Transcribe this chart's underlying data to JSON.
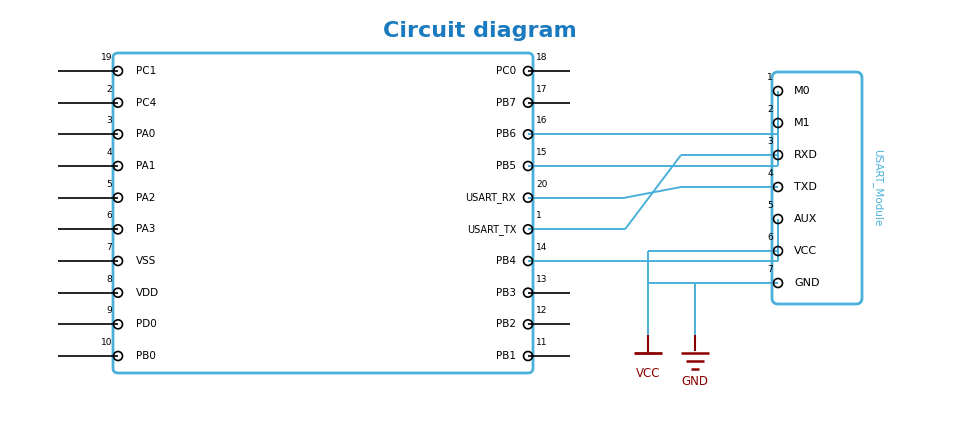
{
  "title": "Circuit diagram",
  "title_color": "#1a7abf",
  "title_fontsize": 16,
  "bg_color": "#ffffff",
  "wire_color": "#4ab0d9",
  "box_color": "#4ab0d9",
  "pin_color": "#000000",
  "label_color": "#000000",
  "num_color": "#000000",
  "power_color": "#8b0000",
  "module_label_color": "#4ab0d9",
  "left_pins": [
    {
      "num": "19",
      "label": "PC1"
    },
    {
      "num": "2",
      "label": "PC4"
    },
    {
      "num": "3",
      "label": "PA0"
    },
    {
      "num": "4",
      "label": "PA1"
    },
    {
      "num": "5",
      "label": "PA2"
    },
    {
      "num": "6",
      "label": "PA3"
    },
    {
      "num": "7",
      "label": "VSS"
    },
    {
      "num": "8",
      "label": "VDD"
    },
    {
      "num": "9",
      "label": "PD0"
    },
    {
      "num": "10",
      "label": "PB0"
    }
  ],
  "right_pins": [
    {
      "num": "18",
      "label": "PC0"
    },
    {
      "num": "17",
      "label": "PB7"
    },
    {
      "num": "16",
      "label": "PB6"
    },
    {
      "num": "15",
      "label": "PB5"
    },
    {
      "num": "20",
      "label": "USART_RX"
    },
    {
      "num": "1",
      "label": "USART_TX"
    },
    {
      "num": "14",
      "label": "PB4"
    },
    {
      "num": "13",
      "label": "PB3"
    },
    {
      "num": "12",
      "label": "PB2"
    },
    {
      "num": "11",
      "label": "PB1"
    }
  ],
  "module_pins": [
    {
      "num": "1",
      "label": "M0"
    },
    {
      "num": "2",
      "label": "M1"
    },
    {
      "num": "3",
      "label": "RXD"
    },
    {
      "num": "4",
      "label": "TXD"
    },
    {
      "num": "5",
      "label": "AUX"
    },
    {
      "num": "6",
      "label": "VCC"
    },
    {
      "num": "7",
      "label": "GND"
    }
  ]
}
